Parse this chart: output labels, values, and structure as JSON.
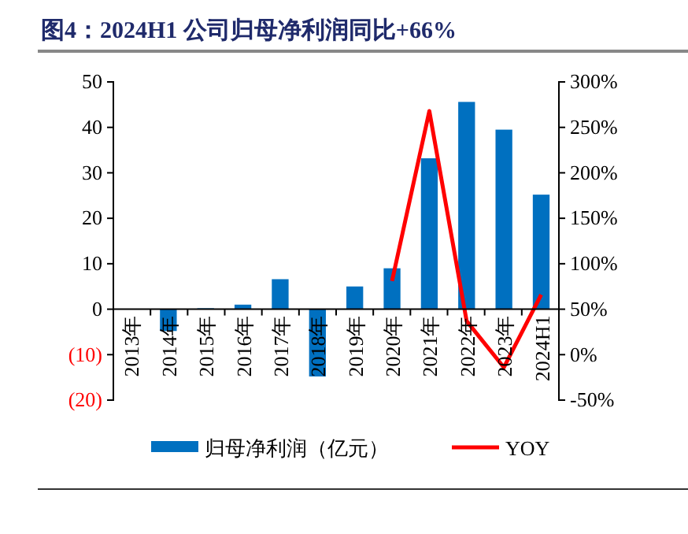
{
  "chart_data": {
    "type": "bar",
    "title": "图4：2024H1 公司归母净利润同比+66%",
    "categories": [
      "2013年",
      "2014年",
      "2015年",
      "2016年",
      "2017年",
      "2018年",
      "2019年",
      "2020年",
      "2021年",
      "2022年",
      "2023年",
      "2024H1"
    ],
    "series": [
      {
        "name": "归母净利润（亿元）",
        "color": "#0070c0",
        "values": [
          0.1,
          -4.8,
          0.2,
          1.0,
          6.6,
          -14.8,
          5.0,
          9.0,
          33.2,
          45.6,
          39.5,
          25.2
        ]
      },
      {
        "name": "YOY",
        "type": "line",
        "axis": "y2",
        "color": "#ff0000",
        "values": [
          null,
          null,
          null,
          null,
          null,
          null,
          null,
          81,
          268,
          37,
          -14,
          66
        ]
      }
    ],
    "ylim": [
      -20,
      50
    ],
    "yticks": [
      {
        "value": -20,
        "label": "(20)"
      },
      {
        "value": -10,
        "label": "(10)"
      },
      0,
      10,
      20,
      30,
      40,
      50
    ],
    "y2lim": [
      -50,
      300
    ],
    "y2ticks": [
      {
        "value": -50,
        "label": "-50%"
      },
      {
        "value": 0,
        "label": "0%"
      },
      {
        "value": 50,
        "label": "50%"
      },
      {
        "value": 100,
        "label": "100%"
      },
      {
        "value": 150,
        "label": "150%"
      },
      {
        "value": 200,
        "label": "200%"
      },
      {
        "value": 250,
        "label": "250%"
      },
      {
        "value": 300,
        "label": "300%"
      }
    ],
    "legend": "bottom",
    "grid": false,
    "marker": "none"
  }
}
